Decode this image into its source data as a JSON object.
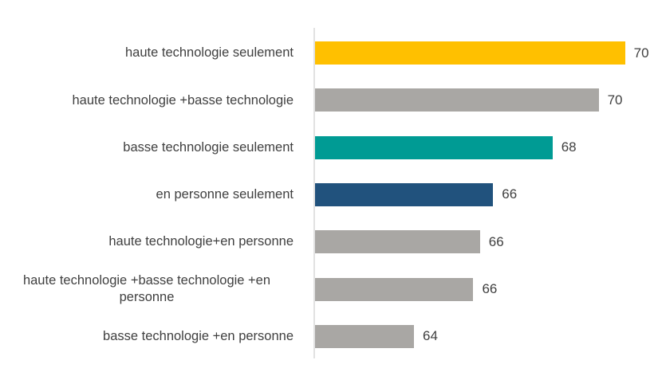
{
  "chart_data": {
    "type": "bar",
    "orientation": "horizontal",
    "title": "",
    "xlabel": "",
    "ylabel": "",
    "categories": [
      "haute technologie seulement",
      "haute technologie +basse technologie",
      "basse technologie seulement",
      "en personne seulement",
      "haute technologie+en personne",
      "haute technologie +basse technologie +en\npersonne",
      "basse technologie +en personne"
    ],
    "values": [
      70,
      70,
      68,
      66,
      66,
      66,
      64
    ],
    "value_labels": [
      "70",
      "70",
      "68",
      "66",
      "66",
      "66",
      "64"
    ],
    "values_estimated_from_bar_lengths": [
      70.4,
      69.6,
      68.2,
      66.4,
      66.0,
      65.8,
      64.0
    ],
    "xlim": [
      61,
      71.4
    ],
    "gridlines": false,
    "legend": false,
    "data_label_position": "outside-end",
    "bar_colors": [
      "#FFC000",
      "#A9A7A4",
      "#009B94",
      "#21527D",
      "#A9A7A4",
      "#A9A7A4",
      "#A9A7A4"
    ],
    "colors": {
      "axis_line": "#E2E2E2",
      "text": "#3F3F3F",
      "background": "#FFFFFF"
    }
  }
}
